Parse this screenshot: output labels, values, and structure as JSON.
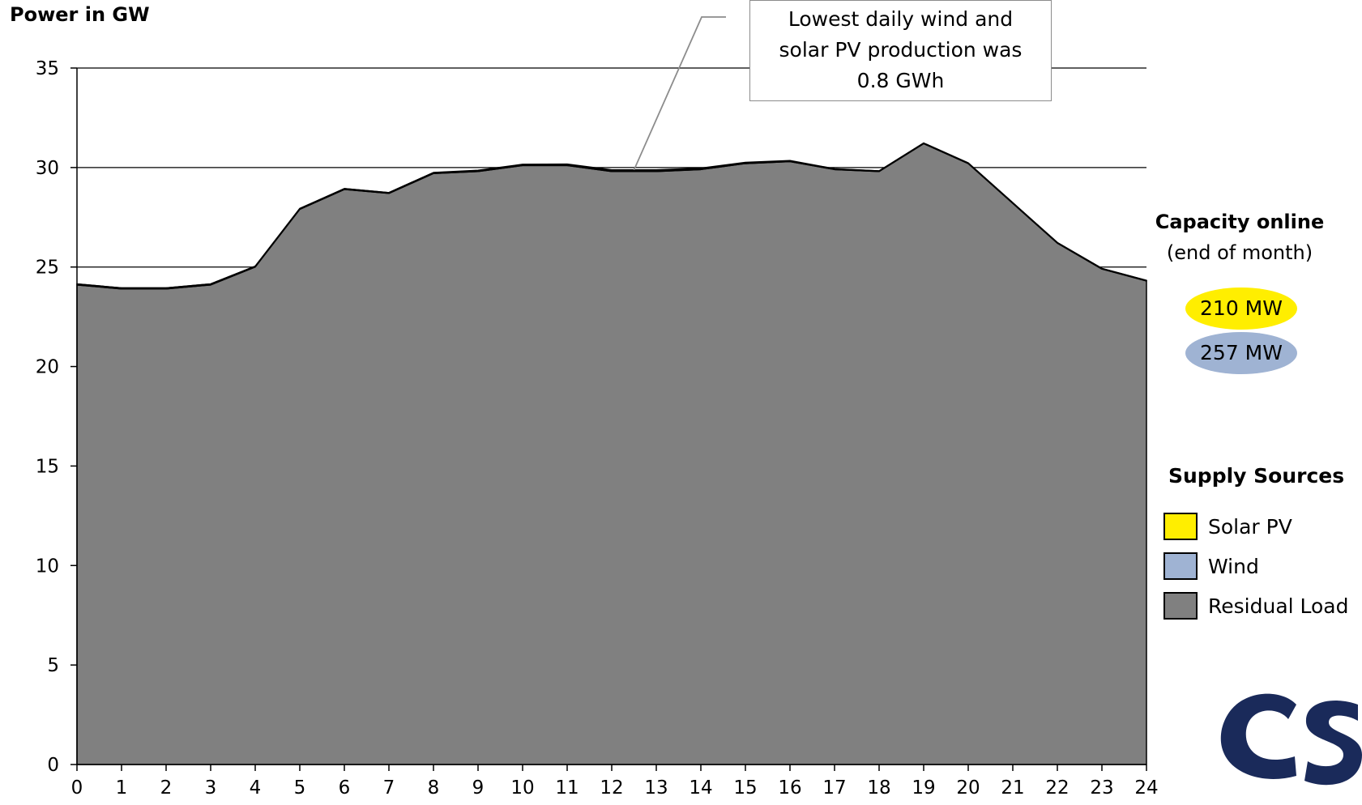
{
  "chart_data": {
    "type": "area",
    "title": "",
    "ylabel": "Power in GW",
    "xlabel": "",
    "x": [
      0,
      1,
      2,
      3,
      4,
      5,
      6,
      7,
      8,
      9,
      10,
      11,
      12,
      13,
      14,
      15,
      16,
      17,
      18,
      19,
      20,
      21,
      22,
      23,
      24
    ],
    "ylim": [
      0,
      35
    ],
    "yticks": [
      0,
      5,
      10,
      15,
      20,
      25,
      30,
      35
    ],
    "grid": "horizontal",
    "legend_title": "Supply Sources",
    "legend_position": "right",
    "stacking": "stacked",
    "series": [
      {
        "name": "Residual Load",
        "color": "#808080",
        "values": [
          24.1,
          23.9,
          23.9,
          24.1,
          25.0,
          27.9,
          28.9,
          28.7,
          29.7,
          29.8,
          30.1,
          30.1,
          29.8,
          29.8,
          29.9,
          30.2,
          30.3,
          29.9,
          29.8,
          31.2,
          30.2,
          28.2,
          26.2,
          24.9,
          24.3
        ]
      },
      {
        "name": "Wind",
        "color": "#9fb3d3",
        "values": [
          0.05,
          0.05,
          0.05,
          0.05,
          0.04,
          0.04,
          0.04,
          0.04,
          0.04,
          0.04,
          0.03,
          0.03,
          0.03,
          0.03,
          0.03,
          0.03,
          0.03,
          0.03,
          0.03,
          0.03,
          0.03,
          0.03,
          0.03,
          0.03,
          0.03
        ]
      },
      {
        "name": "Solar PV",
        "color": "#ffee00",
        "values": [
          0,
          0,
          0,
          0,
          0,
          0,
          0,
          0,
          0.01,
          0.02,
          0.03,
          0.04,
          0.05,
          0.05,
          0.04,
          0.03,
          0.02,
          0.01,
          0,
          0,
          0,
          0,
          0,
          0,
          0
        ]
      }
    ],
    "annotation": {
      "lines": [
        "Lowest daily wind  and",
        "solar PV production was",
        "0.8 GWh"
      ],
      "points_to_x": 12.5
    },
    "capacity_online": {
      "title": "Capacity online",
      "subtitle": "(end of month)",
      "solar": {
        "label": "210 MW",
        "color": "#ffee00"
      },
      "wind": {
        "label": "257 MW",
        "color": "#9fb3d3"
      }
    }
  },
  "logo": {
    "icon": "csi-logo-icon",
    "color": "#1a2a5a"
  }
}
